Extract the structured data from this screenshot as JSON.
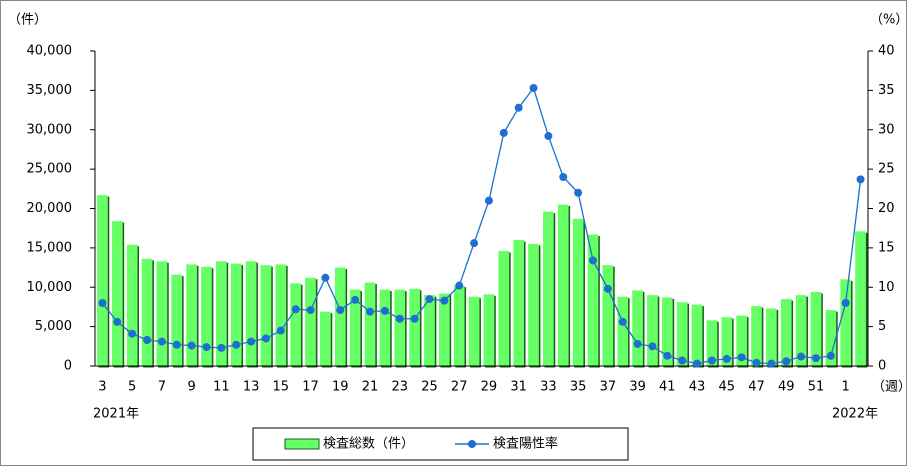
{
  "chart_data": {
    "type": "bar",
    "y_label": "（件）",
    "y2_label": "（%）",
    "x_label": "（週）",
    "start_label": "2021年",
    "end_label": "2022年",
    "categories": [
      "3",
      null,
      "5",
      null,
      "7",
      null,
      "9",
      null,
      "11",
      null,
      "13",
      null,
      "15",
      null,
      "17",
      null,
      "19",
      null,
      "21",
      null,
      "23",
      null,
      "25",
      null,
      "27",
      null,
      "29",
      null,
      "31",
      null,
      "33",
      null,
      "35",
      null,
      "37",
      null,
      "39",
      null,
      "41",
      null,
      "43",
      null,
      "45",
      null,
      "47",
      null,
      "49",
      null,
      "51",
      null,
      "1",
      null
    ],
    "series": [
      {
        "name": "検査総数（件）",
        "type": "bar",
        "color": "#66ff66",
        "values": [
          21700,
          18400,
          15400,
          13600,
          13300,
          11600,
          12900,
          12600,
          13300,
          13000,
          13300,
          12800,
          12900,
          10500,
          11200,
          6900,
          12500,
          9700,
          10600,
          9700,
          9700,
          9800,
          9000,
          9200,
          10200,
          8800,
          9100,
          14600,
          16000,
          15500,
          19600,
          20500,
          18700,
          16700,
          12800,
          8800,
          9600,
          9000,
          8700,
          8100,
          7800,
          5800,
          6200,
          6400,
          7600,
          7300,
          8500,
          9000,
          9400,
          7100,
          11000,
          17100
        ]
      },
      {
        "name": "検査陽性率",
        "type": "line",
        "axis": "y2",
        "color": "#1f6fd0",
        "values": [
          8.0,
          5.6,
          4.1,
          3.3,
          3.1,
          2.7,
          2.6,
          2.4,
          2.3,
          2.7,
          3.1,
          3.5,
          4.5,
          7.2,
          7.1,
          11.2,
          7.1,
          8.4,
          6.9,
          7.0,
          6.0,
          6.0,
          8.5,
          8.3,
          10.2,
          15.6,
          21.0,
          29.6,
          32.8,
          35.3,
          29.2,
          24.0,
          22.0,
          13.4,
          9.8,
          5.6,
          2.8,
          2.5,
          1.3,
          0.7,
          0.3,
          0.7,
          0.9,
          1.1,
          0.4,
          0.3,
          0.6,
          1.2,
          1.0,
          1.3,
          8.0,
          23.7
        ]
      }
    ],
    "ylim": [
      0,
      40000
    ],
    "yticks": [
      {
        "value": 0,
        "label": "0"
      },
      {
        "value": 5000,
        "label": "5,000"
      },
      {
        "value": 10000,
        "label": "10,000"
      },
      {
        "value": 15000,
        "label": "15,000"
      },
      {
        "value": 20000,
        "label": "20,000"
      },
      {
        "value": 25000,
        "label": "25,000"
      },
      {
        "value": 30000,
        "label": "30,000"
      },
      {
        "value": 35000,
        "label": "35,000"
      },
      {
        "value": 40000,
        "label": "40,000"
      }
    ],
    "y2lim": [
      0,
      40
    ],
    "y2ticks": [
      0,
      5,
      10,
      15,
      20,
      25,
      30,
      35,
      40
    ],
    "legend": "bottom"
  }
}
